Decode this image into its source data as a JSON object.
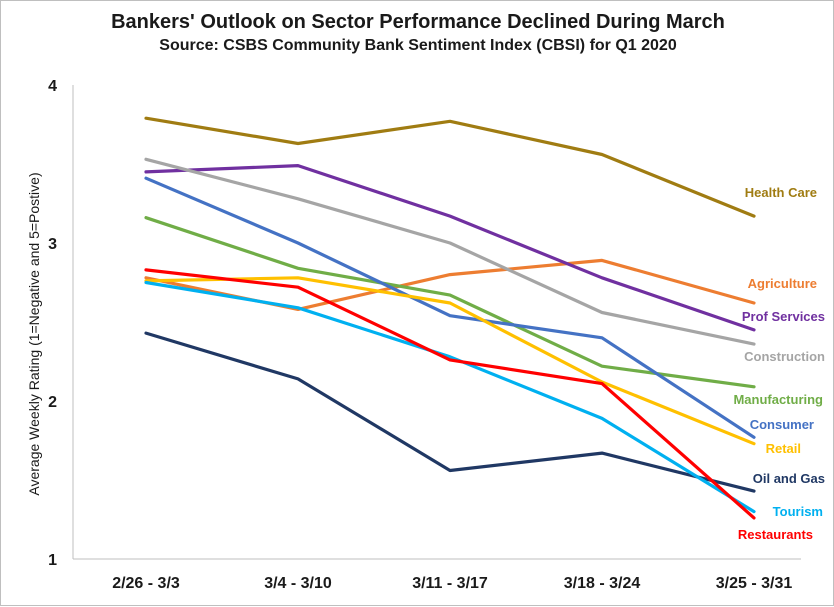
{
  "chart_data": {
    "type": "line",
    "title": "Bankers' Outlook on Sector Performance Declined During March",
    "subtitle": "Source: CSBS Community Bank Sentiment Index (CBSI) for Q1 2020",
    "xlabel": "",
    "ylabel": "Average Weekly Rating (1=Negative and 5=Postive)",
    "categories": [
      "2/26 - 3/3",
      "3/4 - 3/10",
      "3/11 - 3/17",
      "3/18 - 3/24",
      "3/25 - 3/31"
    ],
    "ylim": [
      1,
      4
    ],
    "yticks": [
      "1",
      "2",
      "3",
      "4"
    ],
    "grid": false,
    "legend": "inline labels at line ends",
    "series": [
      {
        "name": "Health Care",
        "color": "#a07c12",
        "values": [
          3.79,
          3.63,
          3.77,
          3.56,
          3.17
        ]
      },
      {
        "name": "Agriculture",
        "color": "#ed7d31",
        "values": [
          2.78,
          2.58,
          2.8,
          2.89,
          2.62
        ]
      },
      {
        "name": "Prof Services",
        "color": "#7030a0",
        "values": [
          3.45,
          3.49,
          3.17,
          2.78,
          2.45
        ]
      },
      {
        "name": "Construction",
        "color": "#a5a5a5",
        "values": [
          3.53,
          3.28,
          3.0,
          2.56,
          2.36
        ]
      },
      {
        "name": "Manufacturing",
        "color": "#70ad47",
        "values": [
          3.16,
          2.84,
          2.67,
          2.22,
          2.09
        ]
      },
      {
        "name": "Consumer",
        "color": "#4472c4",
        "values": [
          3.41,
          3.0,
          2.54,
          2.4,
          1.77
        ]
      },
      {
        "name": "Retail",
        "color": "#ffc000",
        "values": [
          2.76,
          2.78,
          2.62,
          2.12,
          1.73
        ]
      },
      {
        "name": "Oil and Gas",
        "color": "#203864",
        "values": [
          2.43,
          2.14,
          1.56,
          1.67,
          1.43
        ]
      },
      {
        "name": "Tourism",
        "color": "#00b0f0",
        "values": [
          2.75,
          2.59,
          2.28,
          1.89,
          1.3
        ]
      },
      {
        "name": "Restaurants",
        "color": "#ff0000",
        "values": [
          2.83,
          2.72,
          2.26,
          2.11,
          1.26
        ]
      }
    ]
  }
}
